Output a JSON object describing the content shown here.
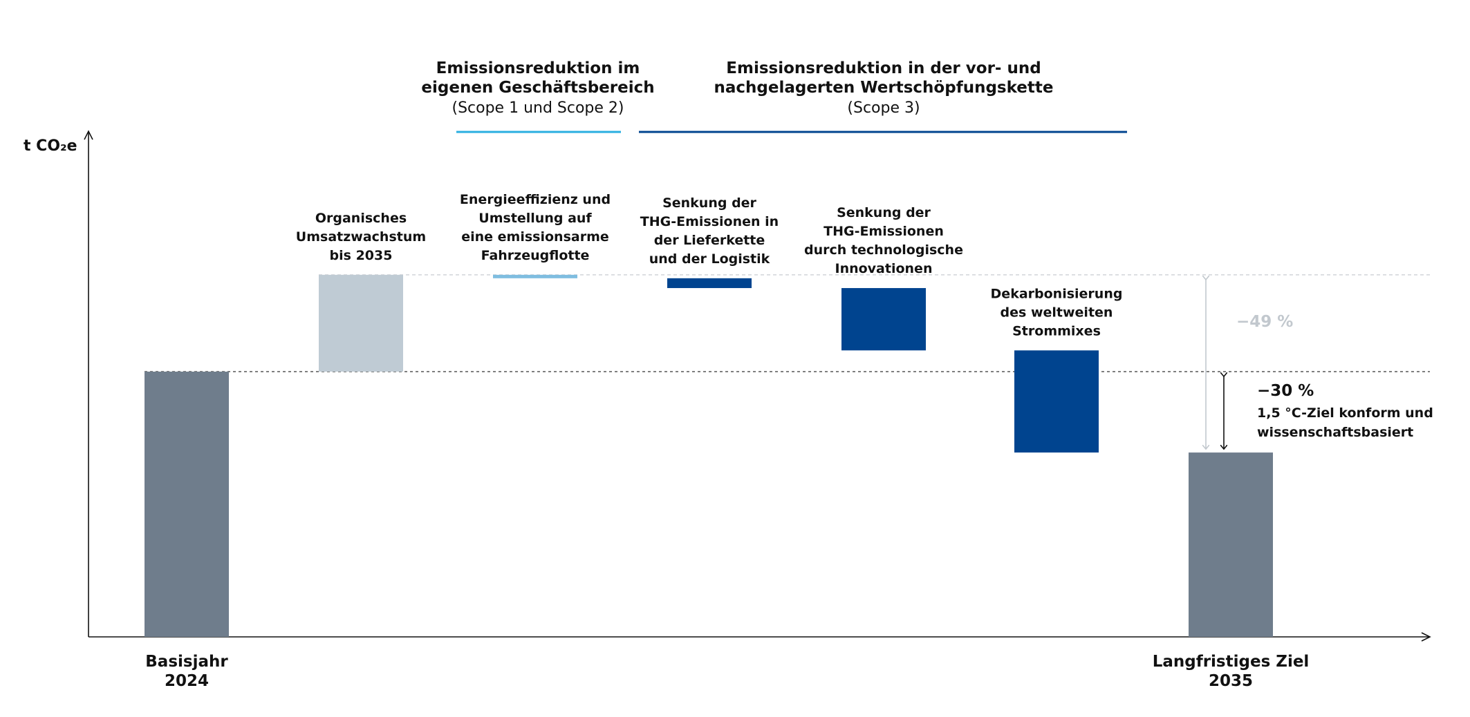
{
  "chart_data": {
    "type": "waterfall",
    "ylabel": "t CO₂e",
    "colors": {
      "total": "#6f7d8c",
      "growth": "#bfcbd4",
      "scope12": "#7fbde0",
      "scope3": "#00448f",
      "bracket_scope12": "#29aee0",
      "bracket_scope3": "#00448f",
      "muted": "#c2c8ce"
    },
    "groups": [
      {
        "title_lines": [
          "Emissionsreduktion im",
          "eigenen Geschäftsbereich"
        ],
        "sub": "(Scope 1 und Scope 2)",
        "steps": [
          2
        ],
        "color_key": "bracket_scope12"
      },
      {
        "title_lines": [
          "Emissionsreduktion in der vor- und",
          "nachgelagerten Wertschöpfungskette"
        ],
        "sub": "(Scope 3)",
        "steps": [
          3,
          4,
          5
        ],
        "color_key": "bracket_scope3"
      }
    ],
    "steps": [
      {
        "kind": "total",
        "value": 100,
        "color_key": "total",
        "x_label_lines": [
          "Basisjahr",
          "2024"
        ],
        "label_lines": []
      },
      {
        "kind": "delta",
        "value": 36.5,
        "color_key": "growth",
        "x_label_lines": [],
        "label_lines": [
          "Organisches",
          "Umsatzwachstum",
          "bis 2035"
        ]
      },
      {
        "kind": "delta",
        "value": -1.3,
        "color_key": "scope12",
        "x_label_lines": [],
        "label_lines": [
          "Energieeffizienz und",
          "Umstellung auf",
          "eine emissionsarme",
          "Fahrzeugflotte"
        ]
      },
      {
        "kind": "delta",
        "value": -3.7,
        "color_key": "scope3",
        "x_label_lines": [],
        "label_lines": [
          "Senkung der",
          "THG-Emissionen in",
          "der Lieferkette",
          "und der Logistik"
        ]
      },
      {
        "kind": "delta",
        "value": -23.5,
        "color_key": "scope3",
        "x_label_lines": [],
        "label_lines": [
          "Senkung der",
          "THG-Emissionen",
          "durch technologische",
          "Innovationen"
        ]
      },
      {
        "kind": "delta",
        "value": -38.5,
        "color_key": "scope3",
        "x_label_lines": [],
        "label_lines": [
          "Dekarbonisierung",
          "des weltweiten",
          "Strommixes"
        ]
      },
      {
        "kind": "total",
        "value": 69.5,
        "color_key": "total",
        "x_label_lines": [
          "Langfristiges Ziel",
          "2035"
        ],
        "label_lines": []
      }
    ],
    "annotations": {
      "minus49": "−49 %",
      "minus30": "−30 %",
      "target_lines": [
        "1,5 °C-Ziel konform und",
        "wissenschaftsbasiert"
      ]
    },
    "ylim": [
      0,
      150
    ]
  }
}
